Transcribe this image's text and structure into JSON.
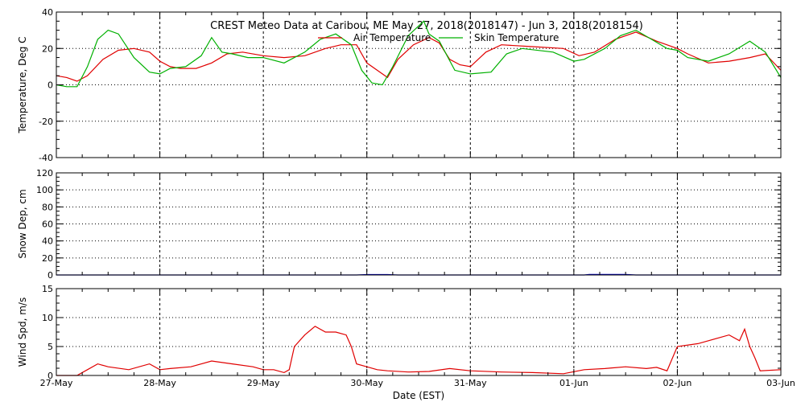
{
  "chart_data": {
    "type": "line",
    "title": "CREST Meteo Data at Caribou, ME   May 27, 2018(2018147) - Jun  3, 2018(2018154)",
    "xlabel": "Date (EST)",
    "x_ticks": [
      "27-May",
      "28-May",
      "29-May",
      "30-May",
      "31-May",
      "01-Jun",
      "02-Jun",
      "03-Jun"
    ],
    "x_unit": "days since 27-May 00:00",
    "panels": [
      {
        "name": "temperature",
        "ylabel": "Temperature, Deg C",
        "ylim": [
          -40,
          40
        ],
        "yticks": [
          -40,
          -20,
          0,
          20,
          40
        ],
        "legend_position": "top-center",
        "series": [
          {
            "name": "Air Temperature",
            "color": "#e00000",
            "points": [
              [
                0,
                5
              ],
              [
                0.1,
                4
              ],
              [
                0.2,
                2
              ],
              [
                0.3,
                5
              ],
              [
                0.45,
                14
              ],
              [
                0.6,
                19
              ],
              [
                0.75,
                20
              ],
              [
                0.9,
                18
              ],
              [
                1.0,
                13
              ],
              [
                1.1,
                10
              ],
              [
                1.2,
                9
              ],
              [
                1.35,
                9
              ],
              [
                1.5,
                12
              ],
              [
                1.65,
                17
              ],
              [
                1.8,
                18
              ],
              [
                2.0,
                16
              ],
              [
                2.2,
                15
              ],
              [
                2.4,
                16
              ],
              [
                2.6,
                20
              ],
              [
                2.75,
                22
              ],
              [
                2.9,
                22
              ],
              [
                3.0,
                12
              ],
              [
                3.1,
                8
              ],
              [
                3.2,
                4
              ],
              [
                3.3,
                14
              ],
              [
                3.45,
                22
              ],
              [
                3.6,
                26
              ],
              [
                3.7,
                23
              ],
              [
                3.8,
                14
              ],
              [
                3.9,
                11
              ],
              [
                4.0,
                10
              ],
              [
                4.15,
                18
              ],
              [
                4.3,
                22
              ],
              [
                4.6,
                21
              ],
              [
                4.9,
                20
              ],
              [
                5.05,
                16
              ],
              [
                5.2,
                18
              ],
              [
                5.4,
                25
              ],
              [
                5.6,
                29
              ],
              [
                5.8,
                24
              ],
              [
                6.0,
                20
              ],
              [
                6.1,
                17
              ],
              [
                6.3,
                12
              ],
              [
                6.5,
                13
              ],
              [
                6.7,
                15
              ],
              [
                6.85,
                17
              ],
              [
                7.0,
                8
              ]
            ]
          },
          {
            "name": "Skin Temperature",
            "color": "#00b000",
            "points": [
              [
                0,
                0
              ],
              [
                0.1,
                -1
              ],
              [
                0.2,
                -1
              ],
              [
                0.3,
                10
              ],
              [
                0.4,
                25
              ],
              [
                0.5,
                30
              ],
              [
                0.6,
                28
              ],
              [
                0.75,
                15
              ],
              [
                0.9,
                7
              ],
              [
                1.0,
                6
              ],
              [
                1.1,
                9
              ],
              [
                1.25,
                10
              ],
              [
                1.4,
                16
              ],
              [
                1.5,
                26
              ],
              [
                1.6,
                18
              ],
              [
                1.7,
                17
              ],
              [
                1.85,
                15
              ],
              [
                2.0,
                15
              ],
              [
                2.2,
                12
              ],
              [
                2.4,
                18
              ],
              [
                2.55,
                25
              ],
              [
                2.7,
                28
              ],
              [
                2.85,
                22
              ],
              [
                2.95,
                8
              ],
              [
                3.05,
                1
              ],
              [
                3.15,
                0
              ],
              [
                3.25,
                10
              ],
              [
                3.4,
                27
              ],
              [
                3.55,
                35
              ],
              [
                3.6,
                28
              ],
              [
                3.7,
                24
              ],
              [
                3.85,
                8
              ],
              [
                4.0,
                6
              ],
              [
                4.2,
                7
              ],
              [
                4.35,
                17
              ],
              [
                4.5,
                20
              ],
              [
                4.8,
                18
              ],
              [
                5.0,
                13
              ],
              [
                5.1,
                14
              ],
              [
                5.3,
                20
              ],
              [
                5.45,
                27
              ],
              [
                5.6,
                30
              ],
              [
                5.75,
                25
              ],
              [
                5.9,
                20
              ],
              [
                6.0,
                19
              ],
              [
                6.1,
                15
              ],
              [
                6.3,
                13
              ],
              [
                6.5,
                17
              ],
              [
                6.7,
                24
              ],
              [
                6.85,
                18
              ],
              [
                7.0,
                4
              ]
            ]
          }
        ]
      },
      {
        "name": "snow",
        "ylabel": "Snow Dep, cm",
        "ylim": [
          0,
          120
        ],
        "yticks": [
          0,
          20,
          40,
          60,
          80,
          100,
          120
        ],
        "series": [
          {
            "name": "Snow Depth",
            "color": "#0000c8",
            "points": [
              [
                0,
                0
              ],
              [
                2.9,
                0
              ],
              [
                3.0,
                0.5
              ],
              [
                3.2,
                0.5
              ],
              [
                3.3,
                0
              ],
              [
                5.1,
                0
              ],
              [
                5.15,
                0.6
              ],
              [
                5.5,
                0.6
              ],
              [
                5.6,
                0
              ],
              [
                7.0,
                0
              ]
            ]
          }
        ]
      },
      {
        "name": "wind",
        "ylabel": "Wind Spd, m/s",
        "ylim": [
          0,
          15
        ],
        "yticks": [
          0,
          5,
          10,
          15
        ],
        "series": [
          {
            "name": "Wind Speed",
            "color": "#e00000",
            "points": [
              [
                0,
                0
              ],
              [
                0.2,
                0
              ],
              [
                0.3,
                1
              ],
              [
                0.4,
                2
              ],
              [
                0.5,
                1.5
              ],
              [
                0.7,
                1
              ],
              [
                0.9,
                2
              ],
              [
                1.0,
                1
              ],
              [
                1.1,
                1.2
              ],
              [
                1.3,
                1.5
              ],
              [
                1.5,
                2.5
              ],
              [
                1.7,
                2
              ],
              [
                1.9,
                1.5
              ],
              [
                2.0,
                1
              ],
              [
                2.1,
                1
              ],
              [
                2.2,
                0.5
              ],
              [
                2.25,
                1
              ],
              [
                2.3,
                5
              ],
              [
                2.4,
                7
              ],
              [
                2.5,
                8.5
              ],
              [
                2.6,
                7.5
              ],
              [
                2.7,
                7.5
              ],
              [
                2.8,
                7
              ],
              [
                2.85,
                5
              ],
              [
                2.9,
                2
              ],
              [
                3.0,
                1.5
              ],
              [
                3.1,
                1
              ],
              [
                3.2,
                0.8
              ],
              [
                3.4,
                0.6
              ],
              [
                3.6,
                0.7
              ],
              [
                3.8,
                1.2
              ],
              [
                4.0,
                0.8
              ],
              [
                4.3,
                0.6
              ],
              [
                4.6,
                0.5
              ],
              [
                4.9,
                0.3
              ],
              [
                5.1,
                1
              ],
              [
                5.3,
                1.2
              ],
              [
                5.5,
                1.5
              ],
              [
                5.7,
                1.2
              ],
              [
                5.8,
                1.4
              ],
              [
                5.9,
                0.8
              ],
              [
                6.0,
                5
              ],
              [
                6.2,
                5.5
              ],
              [
                6.4,
                6.5
              ],
              [
                6.5,
                7
              ],
              [
                6.6,
                6
              ],
              [
                6.65,
                8
              ],
              [
                6.7,
                5
              ],
              [
                6.75,
                3
              ],
              [
                6.8,
                0.8
              ],
              [
                7.0,
                1
              ]
            ]
          }
        ]
      }
    ]
  }
}
